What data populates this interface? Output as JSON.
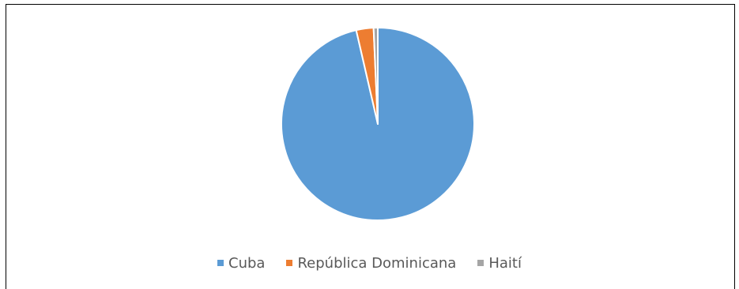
{
  "chart_data": {
    "type": "pie",
    "title": "",
    "slices": [
      {
        "label": "Cuba",
        "value": 96.4,
        "color": "#5B9BD5"
      },
      {
        "label": "República Dominicana",
        "value": 2.9,
        "color": "#ED7D31"
      },
      {
        "label": "Haití",
        "value": 0.7,
        "color": "#A5A5A5"
      }
    ],
    "legend_position": "bottom",
    "start_angle_deg": 0,
    "direction": "clockwise"
  }
}
